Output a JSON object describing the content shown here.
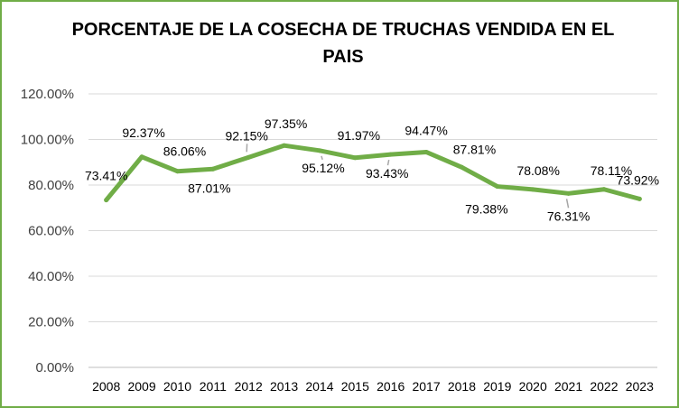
{
  "chart_data": {
    "type": "line",
    "title": "PORCENTAJE DE LA COSECHA DE TRUCHAS VENDIDA EN EL PAIS",
    "xlabel": "",
    "ylabel": "",
    "categories": [
      "2008",
      "2009",
      "2010",
      "2011",
      "2012",
      "2013",
      "2014",
      "2015",
      "2016",
      "2017",
      "2018",
      "2019",
      "2020",
      "2021",
      "2022",
      "2023"
    ],
    "values": [
      73.41,
      92.37,
      86.06,
      87.01,
      92.15,
      97.35,
      95.12,
      91.97,
      93.43,
      94.47,
      87.81,
      79.38,
      78.08,
      76.31,
      78.11,
      73.92
    ],
    "data_labels": [
      "73.41%",
      "92.37%",
      "86.06%",
      "87.01%",
      "92.15%",
      "97.35%",
      "95.12%",
      "91.97%",
      "93.43%",
      "94.47%",
      "87.81%",
      "79.38%",
      "78.08%",
      "76.31%",
      "78.11%",
      "73.92%"
    ],
    "y_ticks": [
      0,
      20,
      40,
      60,
      80,
      100,
      120
    ],
    "y_tick_labels": [
      "0.00%",
      "20.00%",
      "40.00%",
      "60.00%",
      "80.00%",
      "100.00%",
      "120.00%"
    ],
    "ylim": [
      0,
      120
    ],
    "grid": true,
    "legend": "none",
    "line_color": "#70ad47",
    "grid_color": "#d9d9d9",
    "frame_color": "#70ad47"
  }
}
